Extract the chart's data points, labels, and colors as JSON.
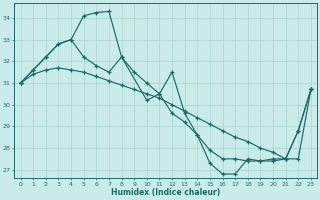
{
  "xlabel": "Humidex (Indice chaleur)",
  "xlim": [
    -0.5,
    23.5
  ],
  "ylim": [
    26.6,
    34.7
  ],
  "yticks": [
    27,
    28,
    29,
    30,
    31,
    32,
    33,
    34
  ],
  "xticks": [
    0,
    1,
    2,
    3,
    4,
    5,
    6,
    7,
    8,
    9,
    10,
    11,
    12,
    13,
    14,
    15,
    16,
    17,
    18,
    19,
    20,
    21,
    22,
    23
  ],
  "bg_color": "#c9ecea",
  "grid_color": "#aed8d5",
  "line_color": "#1a6b68",
  "curve1_x": [
    0,
    1,
    2,
    3,
    4,
    5,
    6,
    7,
    8,
    10,
    11,
    12,
    13,
    14,
    15,
    16,
    17,
    18,
    19,
    20,
    21,
    22,
    23
  ],
  "curve1_y": [
    31.0,
    31.6,
    32.2,
    32.8,
    33.0,
    34.1,
    34.25,
    34.3,
    32.2,
    30.2,
    30.5,
    31.5,
    29.6,
    28.6,
    27.3,
    26.8,
    26.8,
    27.5,
    27.4,
    27.4,
    27.5,
    28.8,
    30.7
  ],
  "curve2_x": [
    0,
    1,
    2,
    3,
    4,
    5,
    6,
    7,
    8,
    9,
    10,
    11,
    12,
    13,
    14,
    15,
    16,
    17,
    18,
    19,
    20,
    21,
    22,
    23
  ],
  "curve2_y": [
    31.0,
    31.6,
    32.2,
    32.8,
    33.0,
    32.2,
    31.8,
    31.5,
    32.2,
    31.5,
    31.0,
    30.5,
    29.6,
    29.2,
    28.6,
    27.9,
    27.5,
    27.5,
    27.4,
    27.4,
    27.5,
    27.5,
    28.8,
    30.7
  ],
  "curve3_x": [
    0,
    1,
    2,
    3,
    4,
    5,
    6,
    7,
    8,
    9,
    10,
    11,
    12,
    13,
    14,
    15,
    16,
    17,
    18,
    19,
    20,
    21,
    22,
    23
  ],
  "curve3_y": [
    31.0,
    31.4,
    31.6,
    31.7,
    31.6,
    31.5,
    31.3,
    31.1,
    30.9,
    30.7,
    30.5,
    30.3,
    30.0,
    29.7,
    29.4,
    29.1,
    28.8,
    28.5,
    28.3,
    28.0,
    27.8,
    27.5,
    27.5,
    30.7
  ]
}
